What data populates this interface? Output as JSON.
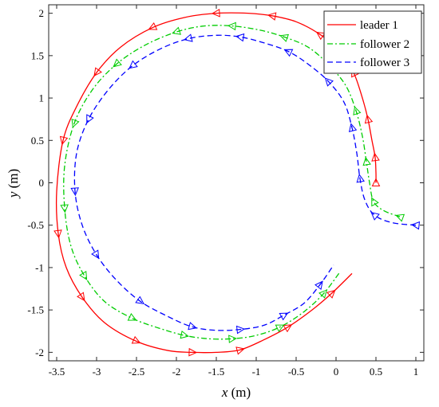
{
  "chart_data": {
    "type": "line",
    "xlabel_var": "x",
    "xlabel_unit": "(m)",
    "ylabel_var": "y",
    "ylabel_unit": "(m)",
    "xlim": [
      -3.6,
      1.1
    ],
    "ylim": [
      -2.1,
      2.1
    ],
    "xticks": [
      -3.5,
      -3,
      -2.5,
      -2,
      -1.5,
      -1,
      -0.5,
      0,
      0.5,
      1
    ],
    "xtick_labels": [
      "-3.5",
      "-3",
      "-2.5",
      "-2",
      "-1.5",
      "-1",
      "-0.5",
      "0",
      "0.5",
      "1"
    ],
    "yticks": [
      -2,
      -1.5,
      -1,
      -0.5,
      0,
      0.5,
      1,
      1.5,
      2
    ],
    "ytick_labels": [
      "-2",
      "-1.5",
      "-1",
      "-0.5",
      "0",
      "0.5",
      "1",
      "1.5",
      "2"
    ],
    "grid": false,
    "legend_position": "top-right",
    "series": [
      {
        "name": "leader 1",
        "color": "#ff0000",
        "dash": "solid",
        "x": [
          0.5,
          0.5,
          0.49,
          0.45,
          0.4,
          0.33,
          0.22,
          0.05,
          -0.2,
          -0.5,
          -0.8,
          -1.1,
          -1.5,
          -1.9,
          -2.3,
          -2.7,
          -3.0,
          -3.25,
          -3.42,
          -3.5,
          -3.48,
          -3.38,
          -3.18,
          -2.9,
          -2.5,
          -2.1,
          -1.8,
          -1.5,
          -1.2,
          -0.9,
          -0.6,
          -0.3,
          -0.05,
          0.2
        ],
        "y": [
          0.0,
          0.12,
          0.3,
          0.5,
          0.75,
          1.0,
          1.3,
          1.55,
          1.75,
          1.9,
          1.97,
          2.0,
          2.0,
          1.95,
          1.83,
          1.6,
          1.3,
          0.9,
          0.5,
          -0.1,
          -0.6,
          -1.0,
          -1.35,
          -1.65,
          -1.87,
          -1.98,
          -2.0,
          -2.0,
          -1.97,
          -1.85,
          -1.7,
          -1.5,
          -1.3,
          -1.07
        ]
      },
      {
        "name": "follower 2",
        "color": "#00cc00",
        "dash": "dashdot",
        "x": [
          0.8,
          0.6,
          0.47,
          0.42,
          0.38,
          0.33,
          0.25,
          0.12,
          -0.1,
          -0.35,
          -0.65,
          -0.95,
          -1.3,
          -1.65,
          -2.0,
          -2.4,
          -2.75,
          -3.05,
          -3.28,
          -3.4,
          -3.4,
          -3.32,
          -3.15,
          -2.9,
          -2.55,
          -2.2,
          -1.9,
          -1.6,
          -1.3,
          -1.0,
          -0.7,
          -0.4,
          -0.15,
          0.05
        ],
        "y": [
          -0.4,
          -0.33,
          -0.22,
          0.0,
          0.25,
          0.55,
          0.85,
          1.15,
          1.4,
          1.6,
          1.72,
          1.8,
          1.85,
          1.85,
          1.78,
          1.62,
          1.4,
          1.1,
          0.7,
          0.2,
          -0.3,
          -0.75,
          -1.1,
          -1.4,
          -1.6,
          -1.72,
          -1.8,
          -1.84,
          -1.84,
          -1.8,
          -1.7,
          -1.52,
          -1.3,
          -1.05
        ]
      },
      {
        "name": "follower 3",
        "color": "#0000ff",
        "dash": "dashed",
        "x": [
          1.0,
          0.7,
          0.48,
          0.36,
          0.3,
          0.26,
          0.2,
          0.1,
          -0.1,
          -0.35,
          -0.6,
          -0.9,
          -1.2,
          -1.5,
          -1.85,
          -2.2,
          -2.55,
          -2.85,
          -3.1,
          -3.25,
          -3.27,
          -3.18,
          -3.0,
          -2.75,
          -2.45,
          -2.1,
          -1.8,
          -1.5,
          -1.2,
          -0.9,
          -0.65,
          -0.4,
          -0.2,
          -0.03
        ],
        "y": [
          -0.5,
          -0.47,
          -0.38,
          -0.2,
          0.05,
          0.35,
          0.65,
          0.95,
          1.2,
          1.4,
          1.55,
          1.65,
          1.72,
          1.74,
          1.7,
          1.58,
          1.38,
          1.1,
          0.75,
          0.35,
          -0.1,
          -0.5,
          -0.85,
          -1.15,
          -1.4,
          -1.58,
          -1.7,
          -1.74,
          -1.73,
          -1.68,
          -1.56,
          -1.42,
          -1.2,
          -0.97
        ]
      }
    ]
  }
}
